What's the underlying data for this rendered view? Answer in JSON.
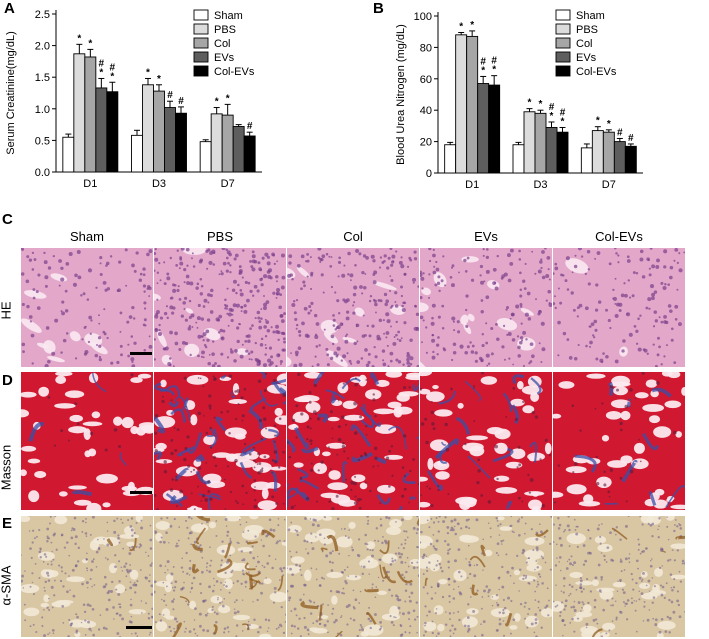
{
  "panel_letters": {
    "a": "A",
    "b": "B",
    "c": "C",
    "d": "D",
    "e": "E"
  },
  "columns": [
    "Sham",
    "PBS",
    "Col",
    "EVs",
    "Col-EVs"
  ],
  "rows": {
    "he": "HE",
    "masson": "Masson",
    "sma": "α-SMA"
  },
  "colors": {
    "series": [
      "#ffffff",
      "#dcdcdc",
      "#a6a6a6",
      "#5e5e5e",
      "#000000"
    ],
    "he_base": "#e3a8c9",
    "he_dark": "#7a3f8c",
    "he_lumen": "#f8e8f2",
    "masson_base": "#d01830",
    "masson_fiber": "#3a4fa8",
    "masson_dark": "#5a1a3a",
    "sma_base": "#d9c6a2",
    "sma_dot": "#6e5a8a",
    "sma_brown": "#8a5418"
  },
  "chart_data": [
    {
      "type": "bar",
      "title": "",
      "xlabel": "",
      "ylabel": "Serum Creatinine(mg/dL)",
      "categories": [
        "D1",
        "D3",
        "D7"
      ],
      "ylim": [
        0,
        2.5
      ],
      "yticks": [
        "0.0",
        "0.5",
        "1.0",
        "1.5",
        "2.0",
        "2.5"
      ],
      "legend_position": "top-right",
      "series": [
        {
          "name": "Sham",
          "values": [
            0.55,
            0.58,
            0.48
          ],
          "errors": [
            0.05,
            0.08,
            0.03
          ],
          "marks": [
            "",
            "",
            ""
          ]
        },
        {
          "name": "PBS",
          "values": [
            1.87,
            1.38,
            0.92
          ],
          "errors": [
            0.15,
            0.1,
            0.1
          ],
          "marks": [
            "*",
            "*",
            "*"
          ]
        },
        {
          "name": "Col",
          "values": [
            1.82,
            1.28,
            0.9
          ],
          "errors": [
            0.12,
            0.1,
            0.17
          ],
          "marks": [
            "*",
            "*",
            "*"
          ]
        },
        {
          "name": "EVs",
          "values": [
            1.33,
            1.02,
            0.72
          ],
          "errors": [
            0.15,
            0.1,
            0.03
          ],
          "marks": [
            "#\n*",
            "#",
            ""
          ]
        },
        {
          "name": "Col-EVs",
          "values": [
            1.27,
            0.93,
            0.57
          ],
          "errors": [
            0.15,
            0.1,
            0.06
          ],
          "marks": [
            "#\n*",
            "#",
            "#"
          ]
        }
      ]
    },
    {
      "type": "bar",
      "title": "",
      "xlabel": "",
      "ylabel": "Blood Urea Nitrogen (mg/dL)",
      "categories": [
        "D1",
        "D3",
        "D7"
      ],
      "ylim": [
        0,
        100
      ],
      "yticks": [
        "0",
        "20",
        "40",
        "60",
        "80",
        "100"
      ],
      "legend_position": "top-right",
      "series": [
        {
          "name": "Sham",
          "values": [
            18,
            18,
            16
          ],
          "errors": [
            1.5,
            1.5,
            2.5
          ],
          "marks": [
            "",
            "",
            ""
          ]
        },
        {
          "name": "PBS",
          "values": [
            88,
            39,
            27
          ],
          "errors": [
            1.5,
            2,
            2.5
          ],
          "marks": [
            "*",
            "*",
            "*"
          ]
        },
        {
          "name": "Col",
          "values": [
            87,
            38,
            26
          ],
          "errors": [
            3.5,
            2,
            1.5
          ],
          "marks": [
            "*",
            "*",
            "*"
          ]
        },
        {
          "name": "EVs",
          "values": [
            57,
            29,
            20
          ],
          "errors": [
            4.5,
            3.5,
            2
          ],
          "marks": [
            "#\n*",
            "#\n*",
            "#"
          ]
        },
        {
          "name": "Col-EVs",
          "values": [
            56,
            26,
            17
          ],
          "errors": [
            6,
            3,
            1.5
          ],
          "marks": [
            "#\n*",
            "#\n*",
            "#"
          ]
        }
      ]
    }
  ]
}
